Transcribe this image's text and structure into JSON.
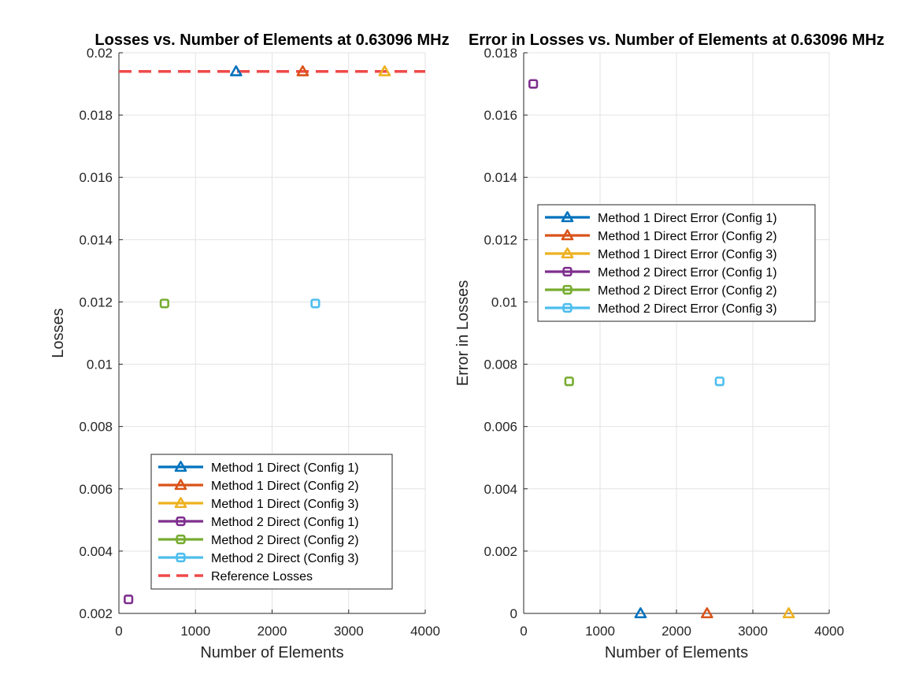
{
  "chart_data": [
    {
      "type": "scatter",
      "title": "Losses vs. Number of Elements at 0.63096 MHz",
      "xlabel": "Number of Elements",
      "ylabel": "Losses",
      "xlim": [
        0,
        4000
      ],
      "ylim": [
        0.002,
        0.02
      ],
      "xticks": [
        0,
        1000,
        2000,
        3000,
        4000
      ],
      "xtick_labels": [
        "0",
        "1000",
        "2000",
        "3000",
        "4000"
      ],
      "yticks": [
        0.002,
        0.004,
        0.006,
        0.008,
        0.01,
        0.012,
        0.014,
        0.016,
        0.018,
        0.02
      ],
      "ytick_labels": [
        "0.002",
        "0.004",
        "0.006",
        "0.008",
        "0.01",
        "0.012",
        "0.014",
        "0.016",
        "0.018",
        "0.02"
      ],
      "grid": true,
      "legend_position": "bottom-center",
      "series": [
        {
          "name": "Method 1 Direct (Config 1)",
          "marker": "triangle",
          "color": "#0072BD",
          "points": [
            [
              1530,
              0.0194
            ]
          ]
        },
        {
          "name": "Method 1 Direct (Config 2)",
          "marker": "triangle",
          "color": "#D95319",
          "points": [
            [
              2400,
              0.0194
            ]
          ]
        },
        {
          "name": "Method 1 Direct (Config 3)",
          "marker": "triangle",
          "color": "#EDB120",
          "points": [
            [
              3470,
              0.0194
            ]
          ]
        },
        {
          "name": "Method 2 Direct (Config 1)",
          "marker": "square",
          "color": "#7E2F8E",
          "points": [
            [
              125,
              0.00245
            ]
          ]
        },
        {
          "name": "Method 2 Direct (Config 2)",
          "marker": "square",
          "color": "#77AC30",
          "points": [
            [
              595,
              0.01195
            ]
          ]
        },
        {
          "name": "Method 2 Direct (Config 3)",
          "marker": "square",
          "color": "#4DBEEE",
          "points": [
            [
              2565,
              0.01195
            ]
          ]
        }
      ],
      "reference_line": {
        "name": "Reference Losses",
        "y": 0.0194,
        "color": "#F04A4A",
        "style": "dashed"
      }
    },
    {
      "type": "scatter",
      "title": "Error in Losses vs. Number of Elements at 0.63096 MHz",
      "xlabel": "Number of Elements",
      "ylabel": "Error in Losses",
      "xlim": [
        0,
        4000
      ],
      "ylim": [
        0,
        0.018
      ],
      "xticks": [
        0,
        1000,
        2000,
        3000,
        4000
      ],
      "xtick_labels": [
        "0",
        "1000",
        "2000",
        "3000",
        "4000"
      ],
      "yticks": [
        0,
        0.002,
        0.004,
        0.006,
        0.008,
        0.01,
        0.012,
        0.014,
        0.016,
        0.018
      ],
      "ytick_labels": [
        "0",
        "0.002",
        "0.004",
        "0.006",
        "0.008",
        "0.01",
        "0.012",
        "0.014",
        "0.016",
        "0.018"
      ],
      "grid": true,
      "legend_position": "top-right",
      "series": [
        {
          "name": "Method 1 Direct Error (Config 1)",
          "marker": "triangle",
          "color": "#0072BD",
          "points": [
            [
              1530,
              0
            ]
          ]
        },
        {
          "name": "Method 1 Direct Error (Config 2)",
          "marker": "triangle",
          "color": "#D95319",
          "points": [
            [
              2400,
              0
            ]
          ]
        },
        {
          "name": "Method 1 Direct Error (Config 3)",
          "marker": "triangle",
          "color": "#EDB120",
          "points": [
            [
              3470,
              0
            ]
          ]
        },
        {
          "name": "Method 2 Direct Error (Config 1)",
          "marker": "square",
          "color": "#7E2F8E",
          "points": [
            [
              125,
              0.017
            ]
          ]
        },
        {
          "name": "Method 2 Direct Error (Config 2)",
          "marker": "square",
          "color": "#77AC30",
          "points": [
            [
              595,
              0.00745
            ]
          ]
        },
        {
          "name": "Method 2 Direct Error (Config 3)",
          "marker": "square",
          "color": "#4DBEEE",
          "points": [
            [
              2565,
              0.00745
            ]
          ]
        }
      ]
    }
  ]
}
